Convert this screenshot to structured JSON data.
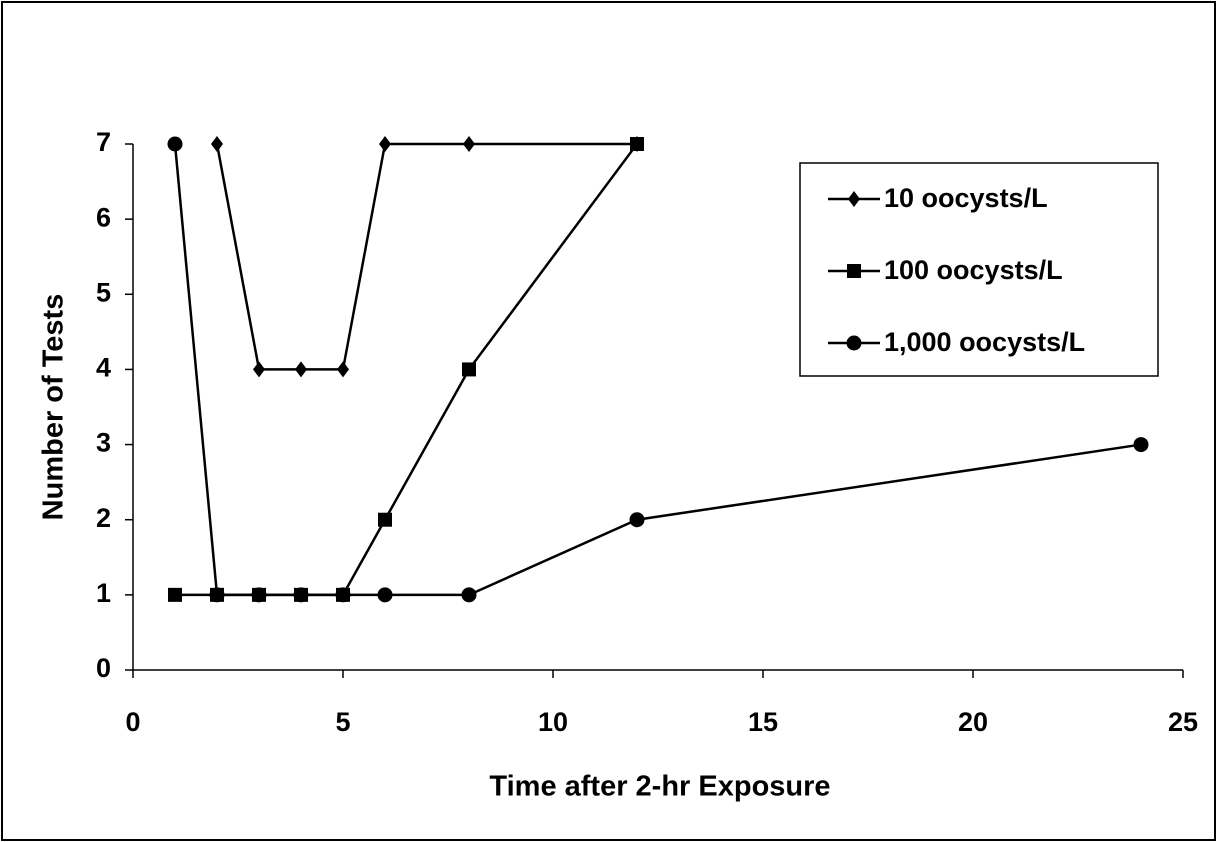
{
  "chart_data": {
    "type": "line",
    "x_label": "Time after 2-hr Exposure",
    "y_label": "Number of Tests",
    "xlim": [
      0,
      25
    ],
    "xticks": [
      0,
      5,
      10,
      15,
      20,
      25
    ],
    "ylim": [
      0,
      7
    ],
    "yticks": [
      0,
      1,
      2,
      3,
      4,
      5,
      6,
      7
    ],
    "legend": "upper right",
    "series": [
      {
        "name": "10 oocysts/L",
        "color": "#000000",
        "marker": "diamond",
        "x": [
          2,
          3,
          4,
          5,
          6,
          8,
          12
        ],
        "values": [
          7,
          4,
          4,
          4,
          7,
          7,
          7
        ]
      },
      {
        "name": "100 oocysts/L",
        "color": "#000000",
        "marker": "square",
        "x": [
          1,
          2,
          3,
          4,
          5,
          6,
          8,
          12
        ],
        "values": [
          1,
          1,
          1,
          1,
          1,
          2,
          4,
          7
        ]
      },
      {
        "name": "1,000 oocysts/L",
        "color": "#000000",
        "marker": "circle",
        "x": [
          1,
          2,
          3,
          4,
          5,
          6,
          8,
          12,
          24
        ],
        "values": [
          7,
          1,
          1,
          1,
          1,
          1,
          1,
          2,
          3
        ]
      }
    ]
  }
}
